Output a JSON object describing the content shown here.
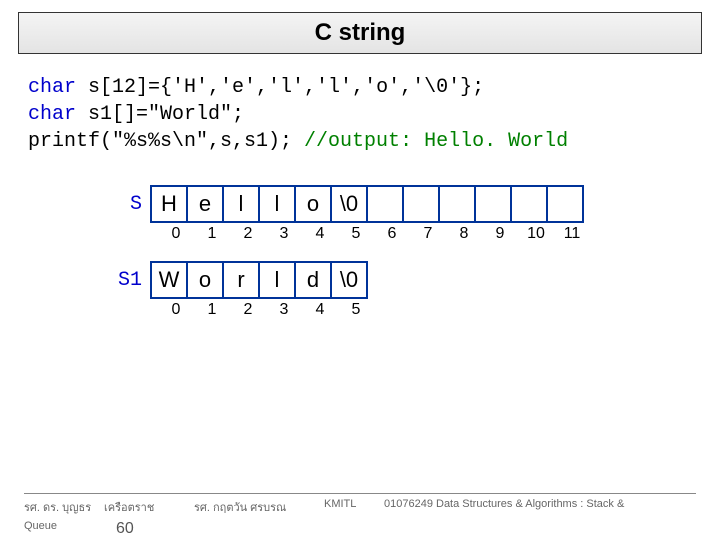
{
  "title": "C string",
  "code": {
    "line1_pre": "char",
    "line1_post": " s[12]={'H','e','l','l','o','\\0'};",
    "line2_pre": "char",
    "line2_post": " s1[]=\"World\";",
    "line3a": "printf(\"%s%s\\n\",s,s1); ",
    "line3b": "//output: Hello. World"
  },
  "array_s": {
    "label": "S",
    "cells": [
      "H",
      "e",
      "l",
      "l",
      "o",
      "\\0",
      "",
      "",
      "",
      "",
      "",
      ""
    ],
    "filled": 6,
    "indices": [
      "0",
      "1",
      "2",
      "3",
      "4",
      "5",
      "6",
      "7",
      "8",
      "9",
      "10",
      "11"
    ]
  },
  "array_s1": {
    "label": "S1",
    "cells": [
      "W",
      "o",
      "r",
      "l",
      "d",
      "\\0"
    ],
    "indices": [
      "0",
      "1",
      "2",
      "3",
      "4",
      "5"
    ]
  },
  "footer": {
    "left": "รศ. ดร. บุญธร",
    "mid": "เครือตราช",
    "mid2": "รศ. กฤตวัน   ศรบรณ",
    "kmitl": "KMITL",
    "right": "01076249 Data Structures & Algorithms : Stack &",
    "queue": "Queue",
    "num": "60"
  },
  "colors": {
    "border": "#003399",
    "keyword": "#0000cc",
    "comment": "#008000"
  }
}
